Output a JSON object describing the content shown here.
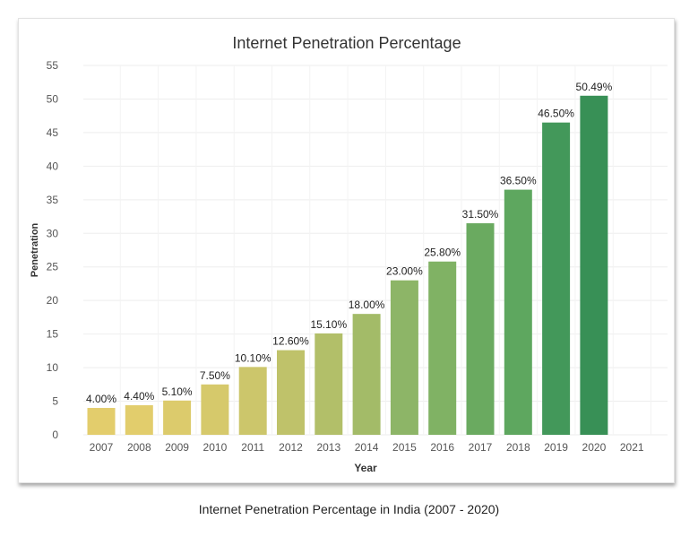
{
  "chart_data": {
    "type": "bar",
    "title": "Internet Penetration Percentage",
    "xlabel": "Year",
    "ylabel": "Penetration",
    "categories": [
      "2007",
      "2008",
      "2009",
      "2010",
      "2011",
      "2012",
      "2013",
      "2014",
      "2015",
      "2016",
      "2017",
      "2018",
      "2019",
      "2020",
      "2021"
    ],
    "values": [
      4.0,
      4.4,
      5.1,
      7.5,
      10.1,
      12.6,
      15.1,
      18.0,
      23.0,
      25.8,
      31.5,
      36.5,
      46.5,
      50.49,
      null
    ],
    "labels": [
      "4.00%",
      "4.40%",
      "5.10%",
      "7.50%",
      "10.10%",
      "12.60%",
      "15.10%",
      "18.00%",
      "23.00%",
      "25.80%",
      "31.50%",
      "36.50%",
      "46.50%",
      "50.49%",
      ""
    ],
    "ylim": [
      0,
      55
    ],
    "yticks": [
      "0",
      "5",
      "10",
      "15",
      "20",
      "25",
      "30",
      "35",
      "40",
      "45",
      "50",
      "55"
    ],
    "grid": true,
    "colors": [
      "#e3cd6c",
      "#e2cd6c",
      "#dccb6c",
      "#d6c96b",
      "#ccc66b",
      "#bfc26a",
      "#b2bf69",
      "#a3bb68",
      "#8db567",
      "#80b264",
      "#6aaa60",
      "#5ea75f",
      "#43985a",
      "#389056"
    ]
  },
  "caption": "Internet Penetration Percentage in India (2007 - 2020)"
}
